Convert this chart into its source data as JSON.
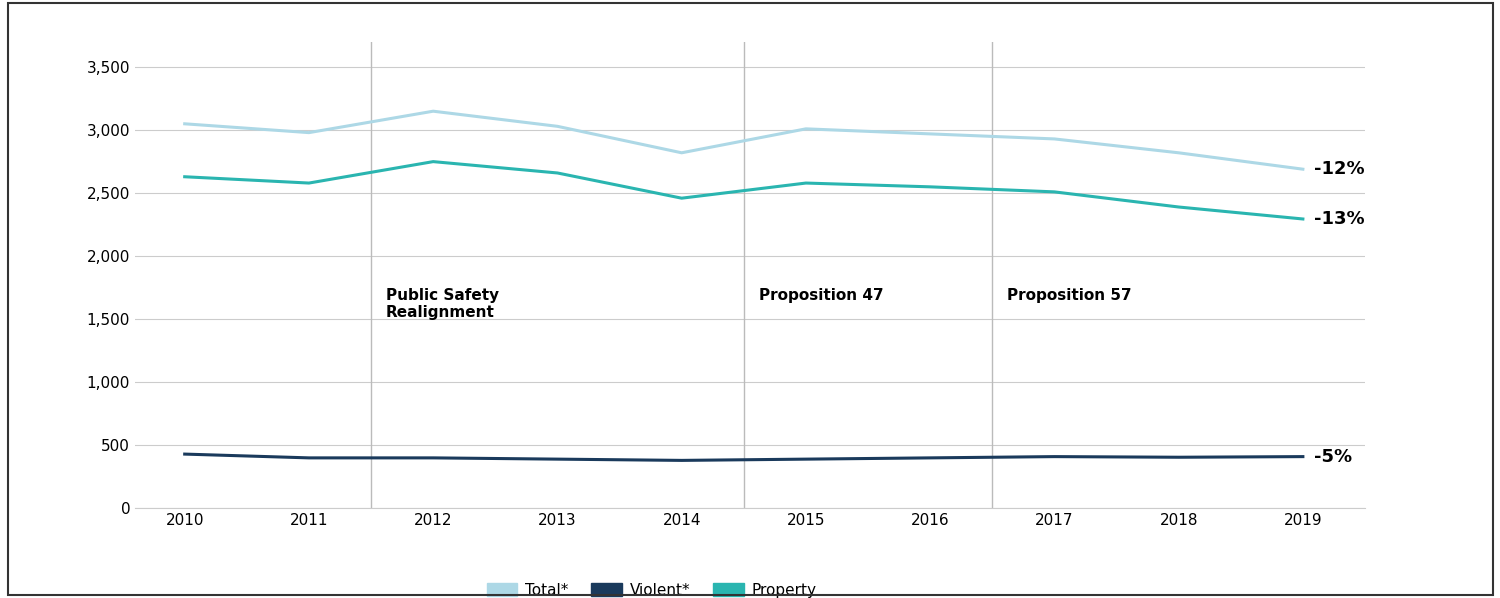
{
  "years": [
    2010,
    2011,
    2012,
    2013,
    2014,
    2015,
    2016,
    2017,
    2018,
    2019
  ],
  "total": [
    3050,
    2980,
    3150,
    3030,
    2820,
    3010,
    2970,
    2930,
    2820,
    2690
  ],
  "violent": [
    430,
    400,
    400,
    390,
    380,
    390,
    400,
    410,
    405,
    410
  ],
  "property": [
    2630,
    2580,
    2750,
    2660,
    2460,
    2580,
    2550,
    2510,
    2390,
    2295
  ],
  "total_color": "#add8e6",
  "violent_color": "#1a3a5c",
  "property_color": "#2ab5b0",
  "vertical_lines": [
    2011.5,
    2014.5,
    2016.5
  ],
  "end_labels": [
    "-12%",
    "-13%",
    "-5%"
  ],
  "ylim": [
    0,
    3700
  ],
  "yticks": [
    0,
    500,
    1000,
    1500,
    2000,
    2500,
    3000,
    3500
  ],
  "background_color": "#ffffff",
  "grid_color": "#cccccc",
  "legend_labels": [
    "Total*",
    "Violent*",
    "Property"
  ],
  "line_width": 2.2,
  "outer_border_color": "#333333",
  "outer_border_lw": 1.5
}
